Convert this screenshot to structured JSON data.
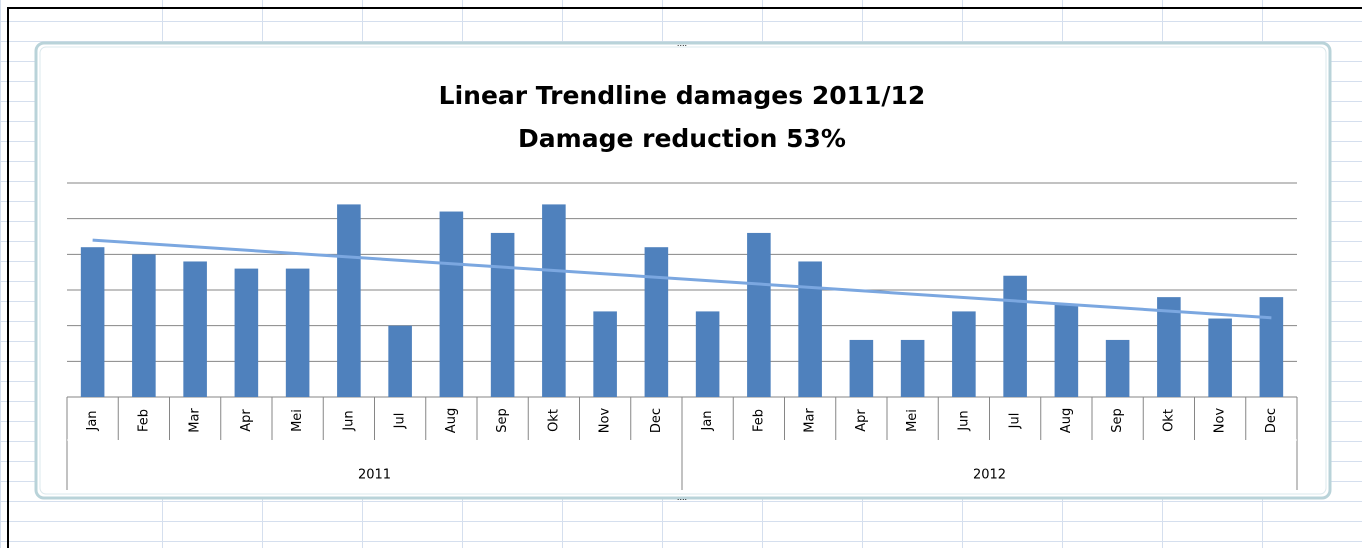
{
  "chart_data": {
    "type": "bar",
    "title": "Linear Trendline damages 2011/12",
    "subtitle": "Damage reduction 53%",
    "categories": [
      "Jan",
      "Feb",
      "Mar",
      "Apr",
      "Mei",
      "Jun",
      "Jul",
      "Aug",
      "Sep",
      "Okt",
      "Nov",
      "Dec",
      "Jan",
      "Feb",
      "Mar",
      "Apr",
      "Mei",
      "Jun",
      "Jul",
      "Aug",
      "Sep",
      "Okt",
      "Nov",
      "Dec"
    ],
    "groups": [
      "2011",
      "2012"
    ],
    "values": [
      21,
      20,
      19,
      18,
      18,
      27,
      10,
      26,
      23,
      27,
      12,
      21,
      12,
      23,
      19,
      8,
      8,
      12,
      17,
      13,
      8,
      14,
      11,
      14
    ],
    "color": "#4f81bd",
    "trendline": {
      "values": [
        22,
        11.1
      ],
      "color": "#7ba7e0"
    },
    "ylim": [
      0,
      30
    ],
    "yticks": [
      0,
      5,
      10,
      15,
      20,
      25,
      30
    ],
    "grid": true
  }
}
